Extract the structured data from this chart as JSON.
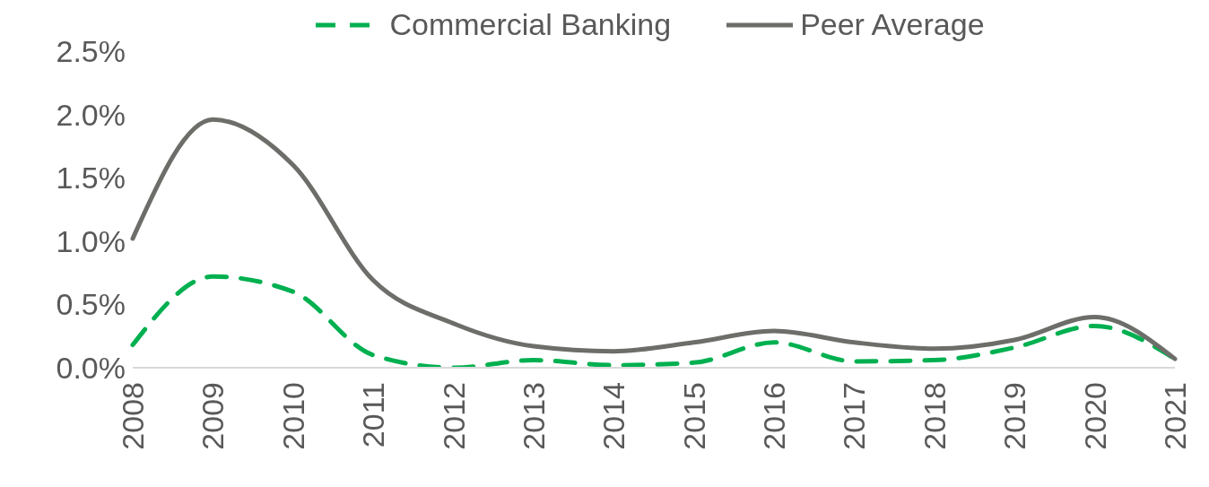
{
  "chart_data": {
    "type": "line",
    "categories": [
      "2008",
      "2009",
      "2010",
      "2011",
      "2012",
      "2013",
      "2014",
      "2015",
      "2016",
      "2017",
      "2018",
      "2019",
      "2020",
      "2021"
    ],
    "series": [
      {
        "name": "Commercial Banking",
        "color": "#00b050",
        "line_style": "dashed",
        "values": [
          0.18,
          0.72,
          0.6,
          0.1,
          0.0,
          0.06,
          0.02,
          0.04,
          0.2,
          0.05,
          0.06,
          0.16,
          0.33,
          0.07
        ]
      },
      {
        "name": "Peer Average",
        "color": "#6d6d69",
        "line_style": "solid",
        "values": [
          1.02,
          1.96,
          1.6,
          0.69,
          0.35,
          0.17,
          0.13,
          0.2,
          0.29,
          0.2,
          0.15,
          0.22,
          0.4,
          0.07
        ]
      }
    ],
    "ylim": [
      0,
      2.5
    ],
    "yticks": [
      {
        "value": 0,
        "label": "0.0%"
      },
      {
        "value": 0.5,
        "label": "0.5%"
      },
      {
        "value": 1,
        "label": "1.0%"
      },
      {
        "value": 1.5,
        "label": "1.5%"
      },
      {
        "value": 2,
        "label": "2.0%"
      },
      {
        "value": 2.5,
        "label": "2.5%"
      }
    ],
    "grid": false,
    "legend": "top",
    "marker": "none"
  }
}
